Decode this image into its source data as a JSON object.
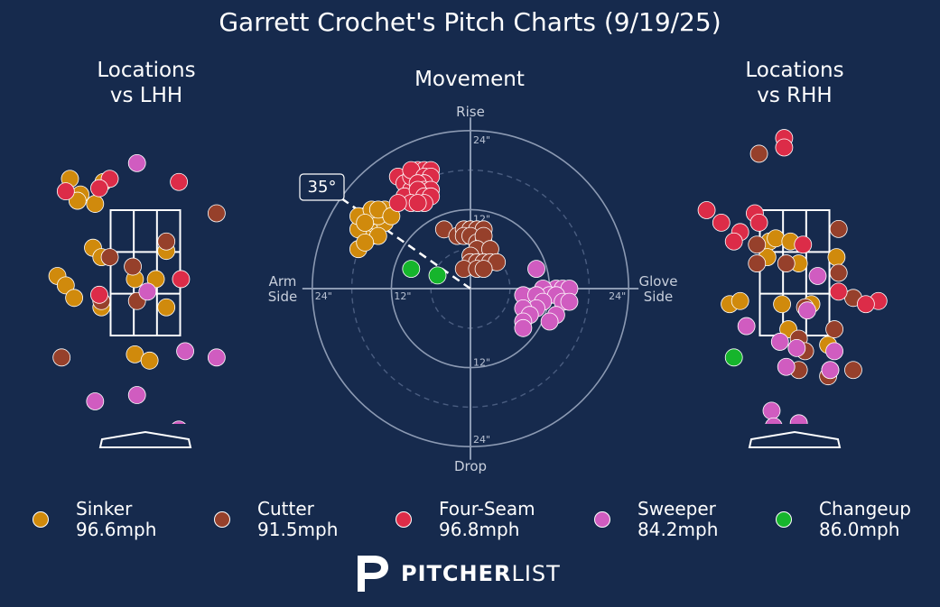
{
  "title": "Garrett Crochet's Pitch Charts (9/19/25)",
  "colors": {
    "background": "#162a4d",
    "Sinker": "#d08a0c",
    "Cutter": "#96402b",
    "Four-Seam": "#dc2c48",
    "Sweeper": "#d05cc0",
    "Changeup": "#16b52c"
  },
  "legend": [
    {
      "name": "Sinker",
      "speed": "96.6mph"
    },
    {
      "name": "Cutter",
      "speed": "91.5mph"
    },
    {
      "name": "Four-Seam",
      "speed": "96.8mph"
    },
    {
      "name": "Sweeper",
      "speed": "84.2mph"
    },
    {
      "name": "Changeup",
      "speed": "86.0mph"
    }
  ],
  "brand": {
    "bold": "PITCHER",
    "light": "LIST"
  },
  "chart_data": [
    {
      "type": "scatter",
      "title": "Locations\nvs LHH",
      "xlim": [
        -2.5,
        2.5
      ],
      "ylim": [
        -1.0,
        5.0
      ],
      "strike_zone": {
        "x": [
          -0.83,
          0.83
        ],
        "z": [
          1.5,
          3.5
        ]
      },
      "series": [
        {
          "name": "Sinker",
          "points": [
            [
              -1.8,
              4.0
            ],
            [
              -1.0,
              3.95
            ],
            [
              -1.55,
              3.75
            ],
            [
              -1.62,
              3.65
            ],
            [
              -1.2,
              3.6
            ],
            [
              -1.25,
              2.9
            ],
            [
              -1.05,
              2.75
            ],
            [
              0.5,
              2.85
            ],
            [
              -0.25,
              2.4
            ],
            [
              0.25,
              2.4
            ],
            [
              -2.1,
              2.45
            ],
            [
              -1.9,
              2.3
            ],
            [
              -1.7,
              2.1
            ],
            [
              -1.05,
              1.95
            ],
            [
              0.5,
              1.95
            ],
            [
              -0.25,
              1.2
            ],
            [
              0.1,
              1.1
            ]
          ]
        },
        {
          "name": "Cutter",
          "points": [
            [
              -0.85,
              2.75
            ],
            [
              -0.3,
              2.6
            ],
            [
              0.5,
              3.0
            ],
            [
              1.7,
              3.45
            ],
            [
              -1.05,
              2.05
            ],
            [
              -0.2,
              2.05
            ],
            [
              -2.0,
              1.15
            ]
          ]
        },
        {
          "name": "Four-Seam",
          "points": [
            [
              -1.9,
              3.8
            ],
            [
              -0.85,
              4.0
            ],
            [
              -1.1,
              3.85
            ],
            [
              0.8,
              3.95
            ],
            [
              -1.1,
              2.15
            ],
            [
              0.85,
              2.4
            ]
          ]
        },
        {
          "name": "Sweeper",
          "points": [
            [
              -0.2,
              4.25
            ],
            [
              0.05,
              2.2
            ],
            [
              0.95,
              1.25
            ],
            [
              1.7,
              1.15
            ],
            [
              -1.2,
              0.45
            ],
            [
              -0.2,
              0.55
            ],
            [
              0.8,
              0.0
            ]
          ]
        },
        {
          "name": "Changeup",
          "points": []
        }
      ]
    },
    {
      "type": "scatter",
      "title": "Movement",
      "subtype": "polar",
      "arm_angle": "35°",
      "axis_labels": {
        "top": "Rise",
        "bottom": "Drop",
        "left": "Arm\nSide",
        "right": "Glove\nSide"
      },
      "rings": [
        "12\"",
        "24\""
      ],
      "xlim": [
        -24,
        24
      ],
      "ylim": [
        -24,
        24
      ],
      "series": [
        {
          "name": "Sinker",
          "points": [
            [
              -15,
              8
            ],
            [
              -16,
              9
            ],
            [
              -17,
              9
            ],
            [
              -15,
              10
            ],
            [
              -14,
              10
            ],
            [
              -13,
              10
            ],
            [
              -16,
              11
            ],
            [
              -15,
              11
            ],
            [
              -14,
              11
            ],
            [
              -17,
              11
            ],
            [
              -15,
              12
            ],
            [
              -13,
              12
            ],
            [
              -14,
              12
            ],
            [
              -12,
              11
            ],
            [
              -16,
              10
            ],
            [
              -17,
              6
            ],
            [
              -14,
              8
            ],
            [
              -16,
              7
            ]
          ]
        },
        {
          "name": "Cutter",
          "points": [
            [
              -4,
              9
            ],
            [
              -2,
              8
            ],
            [
              -1,
              9
            ],
            [
              0,
              9
            ],
            [
              1,
              9
            ],
            [
              2,
              9
            ],
            [
              -1,
              8
            ],
            [
              0,
              8
            ],
            [
              1,
              7
            ],
            [
              2,
              7
            ],
            [
              2,
              8
            ],
            [
              1,
              6
            ],
            [
              3,
              6
            ],
            [
              0,
              5
            ],
            [
              0,
              4
            ],
            [
              1,
              4
            ],
            [
              2,
              4
            ],
            [
              3,
              4
            ],
            [
              4,
              4
            ],
            [
              -1,
              3
            ],
            [
              1,
              3
            ],
            [
              2,
              3
            ]
          ]
        },
        {
          "name": "Four-Seam",
          "points": [
            [
              -11,
              17
            ],
            [
              -10,
              16
            ],
            [
              -9,
              15
            ],
            [
              -10,
              14
            ],
            [
              -8,
              17
            ],
            [
              -9,
              17
            ],
            [
              -8,
              18
            ],
            [
              -7,
              18
            ],
            [
              -9,
              18
            ],
            [
              -6,
              18
            ],
            [
              -7,
              17
            ],
            [
              -6,
              17
            ],
            [
              -7,
              16
            ],
            [
              -8,
              16
            ],
            [
              -7,
              15
            ],
            [
              -6,
              15
            ],
            [
              -8,
              15
            ],
            [
              -7,
              14
            ],
            [
              -6,
              14
            ],
            [
              -9,
              13
            ],
            [
              -7,
              13
            ],
            [
              -8,
              13
            ],
            [
              -11,
              13
            ]
          ]
        },
        {
          "name": "Sweeper",
          "points": [
            [
              10,
              3
            ],
            [
              13,
              0
            ],
            [
              14,
              0
            ],
            [
              15,
              0
            ],
            [
              11,
              0
            ],
            [
              12,
              -1
            ],
            [
              13,
              -1
            ],
            [
              14,
              -2
            ],
            [
              15,
              -2
            ],
            [
              8,
              -1
            ],
            [
              10,
              -1
            ],
            [
              11,
              -2
            ],
            [
              10,
              -3
            ],
            [
              8,
              -3
            ],
            [
              9,
              -4
            ],
            [
              13,
              -4
            ],
            [
              8,
              -5
            ],
            [
              12,
              -5
            ],
            [
              8,
              -6
            ]
          ]
        },
        {
          "name": "Changeup",
          "points": [
            [
              -9,
              3
            ],
            [
              -5,
              2
            ]
          ]
        }
      ]
    },
    {
      "type": "scatter",
      "title": "Locations\nvs RHH",
      "xlim": [
        -2.5,
        2.5
      ],
      "ylim": [
        -1.0,
        5.0
      ],
      "strike_zone": {
        "x": [
          -0.83,
          0.83
        ],
        "z": [
          1.5,
          3.5
        ]
      },
      "series": [
        {
          "name": "Sinker",
          "points": [
            [
              -0.6,
              3.0
            ],
            [
              -0.45,
              3.05
            ],
            [
              -0.1,
              3.0
            ],
            [
              -0.65,
              2.75
            ],
            [
              0.1,
              2.65
            ],
            [
              1.0,
              2.75
            ],
            [
              -0.3,
              2.0
            ],
            [
              0.4,
              2.0
            ],
            [
              -1.55,
              2.0
            ],
            [
              -1.3,
              2.05
            ],
            [
              -0.15,
              1.6
            ],
            [
              0.8,
              1.35
            ]
          ]
        },
        {
          "name": "Cutter",
          "points": [
            [
              -0.85,
              4.4
            ],
            [
              1.05,
              3.2
            ],
            [
              -0.9,
              2.95
            ],
            [
              -0.2,
              2.65
            ],
            [
              -0.9,
              2.65
            ],
            [
              1.05,
              2.5
            ],
            [
              0.25,
              1.95
            ],
            [
              1.4,
              2.1
            ],
            [
              0.1,
              1.45
            ],
            [
              0.95,
              1.6
            ],
            [
              0.1,
              0.95
            ],
            [
              0.8,
              0.85
            ],
            [
              1.4,
              0.95
            ],
            [
              0.25,
              1.25
            ]
          ]
        },
        {
          "name": "Four-Seam",
          "points": [
            [
              -0.25,
              4.65
            ],
            [
              -0.25,
              4.5
            ],
            [
              -2.1,
              3.5
            ],
            [
              -1.75,
              3.3
            ],
            [
              -1.3,
              3.15
            ],
            [
              -1.45,
              3.0
            ],
            [
              -0.95,
              3.45
            ],
            [
              -0.85,
              3.3
            ],
            [
              0.2,
              2.95
            ],
            [
              1.05,
              2.2
            ],
            [
              2.0,
              2.05
            ],
            [
              1.7,
              2.0
            ]
          ]
        },
        {
          "name": "Sweeper",
          "points": [
            [
              0.3,
              1.9
            ],
            [
              0.55,
              2.45
            ],
            [
              -0.35,
              1.4
            ],
            [
              0.05,
              1.3
            ],
            [
              -0.2,
              1.0
            ],
            [
              -1.15,
              1.65
            ],
            [
              0.85,
              0.95
            ],
            [
              0.85,
              0.95
            ],
            [
              -0.55,
              0.3
            ],
            [
              -0.5,
              0.05
            ],
            [
              0.1,
              0.1
            ],
            [
              0.95,
              1.25
            ]
          ]
        },
        {
          "name": "Changeup",
          "points": [
            [
              -1.45,
              1.15
            ]
          ]
        }
      ]
    }
  ]
}
